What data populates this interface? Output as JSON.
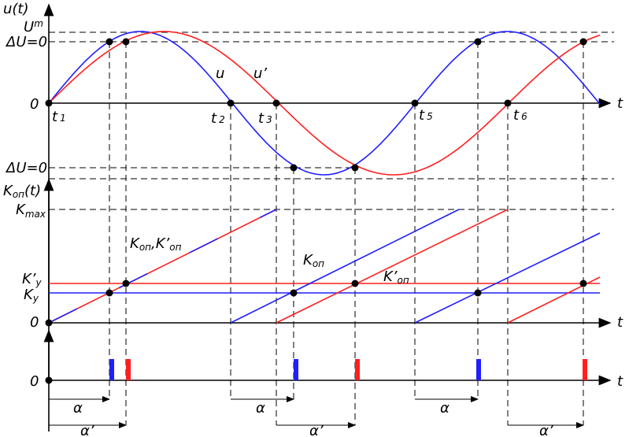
{
  "labels": {
    "u_axis": "u(t)",
    "um": {
      "main": "U",
      "sub": "m"
    },
    "du_top": "ΔU=0",
    "zero_top": "0",
    "t1": {
      "main": "t",
      "sub": "1"
    },
    "u": "u",
    "u_prime": "u’",
    "t2": {
      "main": "t",
      "sub": "2"
    },
    "t3": {
      "main": "t",
      "sub": "3"
    },
    "t5": {
      "main": "t",
      "sub": "5"
    },
    "t6": {
      "main": "t",
      "sub": "6"
    },
    "t_top": "t",
    "du_bottom": "ΔU=0",
    "k_axis": {
      "main": "K",
      "sub": "оп",
      "tail": "(t)"
    },
    "kmax": {
      "main": "K",
      "sub": "max"
    },
    "k_both": {
      "main": "K",
      "sub": "оп",
      "mid": ",K’",
      "sub2": "оп"
    },
    "k_on": {
      "main": "K",
      "sub": "оп"
    },
    "k_on_prime": {
      "main": "K’",
      "sub": "оп"
    },
    "k_y_prime": {
      "main": "K’",
      "sub": "y"
    },
    "k_y": {
      "main": "K",
      "sub": "y"
    },
    "zero_mid": "0",
    "t_mid": "t",
    "zero_bottom": "0",
    "t_bottom": "t",
    "alpha": [
      "α",
      "α",
      "α"
    ],
    "alpha_prime": [
      "α’",
      "α’",
      "α’"
    ]
  }
}
